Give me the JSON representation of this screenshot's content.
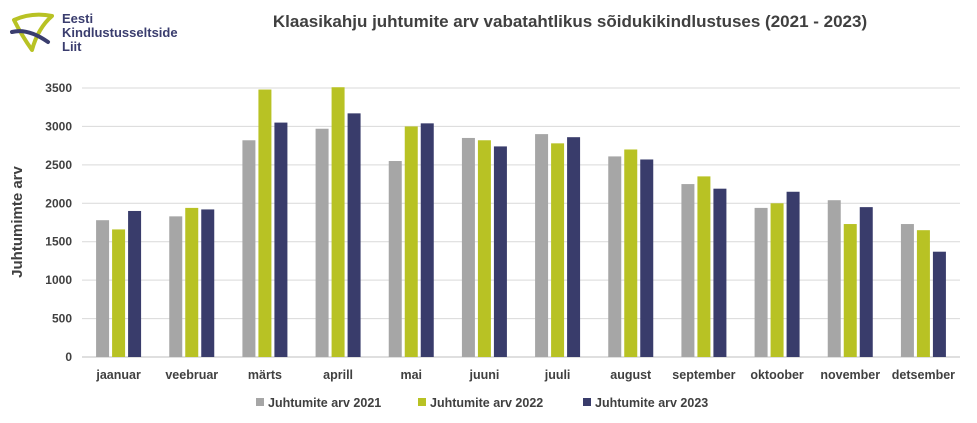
{
  "logo": {
    "name_lines": [
      "Eesti",
      "Kindlustusseltside",
      "Liit"
    ]
  },
  "colors": {
    "s2021": "#a6a6a6",
    "s2022": "#b8c224",
    "s2023": "#393c6b",
    "grid": "#d9d9d9",
    "text": "#404040",
    "logo_green": "#b8c224",
    "logo_navy": "#3a3d6e"
  },
  "chart_data": {
    "type": "bar",
    "title": "Klaasikahju juhtumite arv vabatahtlikus sõidukikindlustuses (2021 - 2023)",
    "xlabel": "",
    "ylabel": "Juhtumimte arv",
    "ylim": [
      0,
      3500
    ],
    "yticks": [
      "0",
      "500",
      "1000",
      "1500",
      "2000",
      "2500",
      "3000",
      "3500"
    ],
    "grid": true,
    "legend_position": "bottom",
    "categories": [
      "jaanuar",
      "veebruar",
      "märts",
      "aprill",
      "mai",
      "juuni",
      "juuli",
      "august",
      "september",
      "oktoober",
      "november",
      "detsember"
    ],
    "series": [
      {
        "name": "Juhtumite arv 2021",
        "color": "#a6a6a6",
        "values": [
          1780,
          1830,
          2820,
          2970,
          2550,
          2850,
          2900,
          2610,
          2250,
          1940,
          2040,
          1730
        ]
      },
      {
        "name": "Juhtumite arv 2022",
        "color": "#b8c224",
        "values": [
          1660,
          1940,
          3480,
          3510,
          3000,
          2820,
          2780,
          2700,
          2350,
          2000,
          1730,
          1650
        ]
      },
      {
        "name": "Juhtumite arv 2023",
        "color": "#393c6b",
        "values": [
          1900,
          1920,
          3050,
          3170,
          3040,
          2740,
          2860,
          2570,
          2190,
          2150,
          1950,
          1370
        ]
      }
    ]
  }
}
